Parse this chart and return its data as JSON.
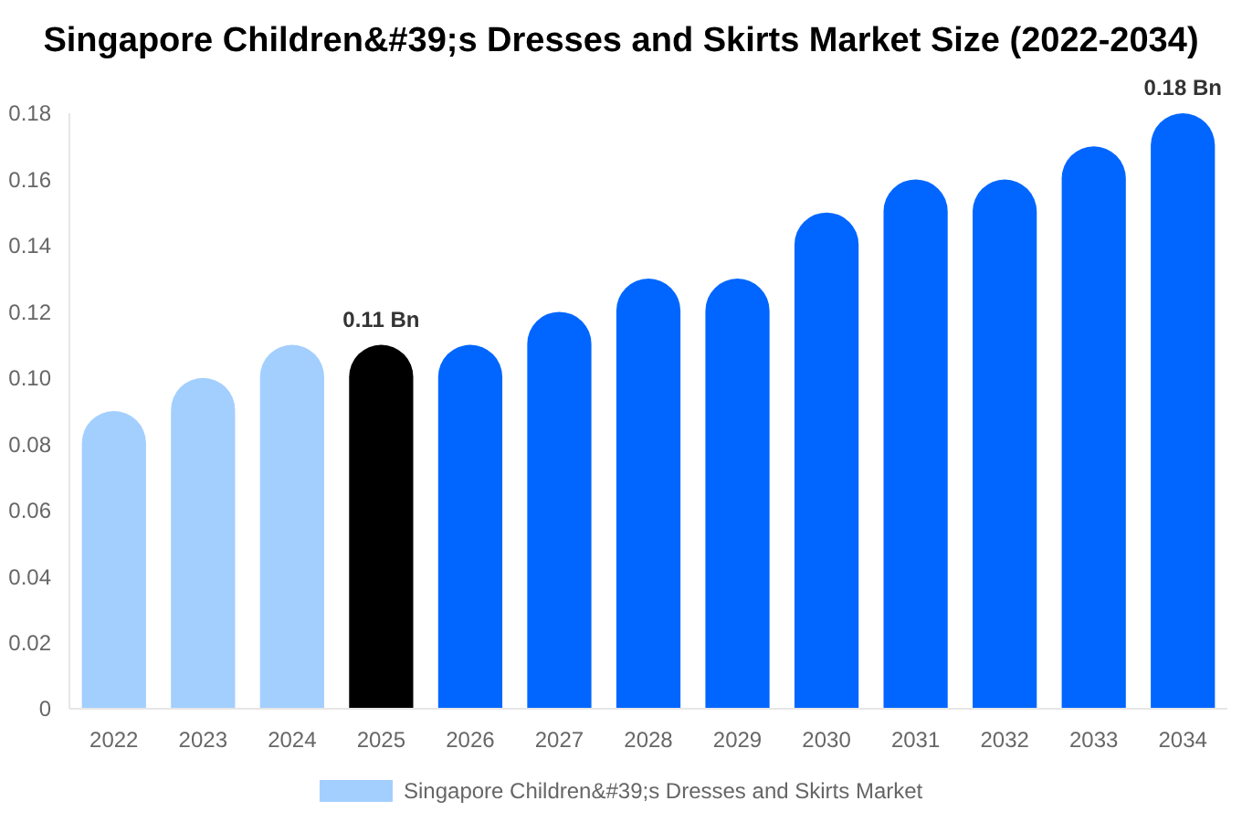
{
  "chart_data": {
    "type": "bar",
    "title": "Singapore Children&#39;s Dresses and Skirts Market Size (2022-2034)",
    "categories": [
      "2022",
      "2023",
      "2024",
      "2025",
      "2026",
      "2027",
      "2028",
      "2029",
      "2030",
      "2031",
      "2032",
      "2033",
      "2034"
    ],
    "series": [
      {
        "name": "Singapore Children&#39;s Dresses and Skirts Market",
        "color": "#a3cfff",
        "values": [
          0.09,
          0.1,
          0.11,
          0.11,
          0.11,
          0.12,
          0.13,
          0.13,
          0.15,
          0.16,
          0.16,
          0.17,
          0.18
        ],
        "colors": [
          "#a3cfff",
          "#a3cfff",
          "#a3cfff",
          "#000000",
          "#0066ff",
          "#0066ff",
          "#0066ff",
          "#0066ff",
          "#0066ff",
          "#0066ff",
          "#0066ff",
          "#0066ff",
          "#0066ff"
        ],
        "value_labels": [
          null,
          null,
          null,
          "0.11 Bn",
          null,
          null,
          null,
          null,
          null,
          null,
          null,
          null,
          "0.18 Bn"
        ]
      }
    ],
    "ylim": [
      0,
      0.18
    ],
    "yticks": [
      0,
      0.02,
      0.04,
      0.06,
      0.08,
      {
        "value": 0.1,
        "label": "0.10"
      },
      0.12,
      0.14,
      0.16,
      0.18
    ],
    "grid": false,
    "legend": "bottom"
  }
}
